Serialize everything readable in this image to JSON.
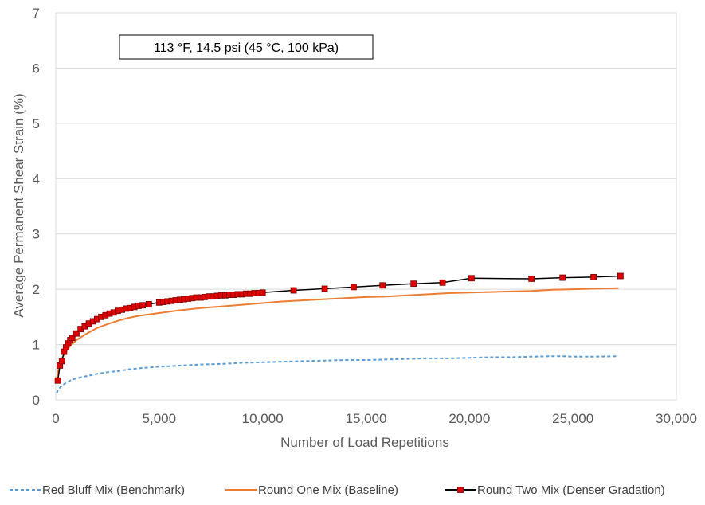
{
  "chart_data": {
    "type": "line",
    "xlabel": "Number  of Load Repetitions",
    "ylabel": "Average Permanent Shear Strain (%)",
    "xlim": [
      0,
      30000
    ],
    "ylim": [
      0,
      7
    ],
    "xticks": [
      0,
      5000,
      10000,
      15000,
      20000,
      25000,
      30000
    ],
    "xtick_labels": [
      "0",
      "5,000",
      "10,000",
      "15,000",
      "20,000",
      "25,000",
      "30,000"
    ],
    "yticks": [
      0,
      1,
      2,
      3,
      4,
      5,
      6,
      7
    ],
    "ytick_labels": [
      "0",
      "1",
      "2",
      "3",
      "4",
      "5",
      "6",
      "7"
    ],
    "grid": "horizontal",
    "annotation": "113 °F, 14.5 psi (45 °C, 100 kPa)",
    "legend_position": "bottom",
    "series": [
      {
        "name": "Red Bluff Mix (Benchmark)",
        "color": "#5B9BD5",
        "style": "dashed",
        "marker": "none",
        "x": [
          50,
          100,
          200,
          300,
          500,
          700,
          1000,
          1500,
          2000,
          2500,
          3000,
          3500,
          4000,
          5000,
          6000,
          7000,
          8000,
          9000,
          10000,
          11000,
          12000,
          13000,
          14000,
          15000,
          16000,
          17000,
          18000,
          19000,
          20000,
          21000,
          22000,
          23000,
          24000,
          24500,
          25000,
          26000,
          27200
        ],
        "y": [
          0.12,
          0.17,
          0.22,
          0.26,
          0.31,
          0.35,
          0.39,
          0.43,
          0.47,
          0.5,
          0.52,
          0.55,
          0.57,
          0.6,
          0.62,
          0.64,
          0.65,
          0.67,
          0.68,
          0.69,
          0.7,
          0.71,
          0.72,
          0.72,
          0.73,
          0.74,
          0.75,
          0.75,
          0.76,
          0.77,
          0.77,
          0.78,
          0.79,
          0.79,
          0.78,
          0.78,
          0.79
        ]
      },
      {
        "name": "Round One Mix (Baseline)",
        "color": "#ED7D31",
        "style": "solid",
        "marker": "none",
        "x": [
          50,
          100,
          200,
          300,
          500,
          700,
          1000,
          1500,
          2000,
          2500,
          3000,
          3500,
          4000,
          5000,
          6000,
          7000,
          8000,
          9000,
          10000,
          11000,
          12000,
          13000,
          14000,
          15000,
          16000,
          17000,
          18000,
          19000,
          20000,
          21000,
          22000,
          23000,
          24000,
          25000,
          26000,
          27200
        ],
        "y": [
          0.35,
          0.5,
          0.65,
          0.75,
          0.88,
          0.98,
          1.08,
          1.2,
          1.3,
          1.37,
          1.43,
          1.48,
          1.52,
          1.57,
          1.62,
          1.66,
          1.69,
          1.72,
          1.75,
          1.78,
          1.8,
          1.82,
          1.84,
          1.86,
          1.87,
          1.89,
          1.91,
          1.93,
          1.94,
          1.95,
          1.96,
          1.97,
          1.99,
          2.0,
          2.01,
          2.02
        ]
      },
      {
        "name": "Round Two Mix (Denser Gradation)",
        "color": "#000000",
        "marker_color": "#E00000",
        "style": "solid",
        "marker": "square",
        "x": [
          100,
          200,
          300,
          400,
          500,
          600,
          700,
          800,
          1000,
          1200,
          1400,
          1600,
          1800,
          2000,
          2200,
          2400,
          2600,
          2800,
          3000,
          3200,
          3400,
          3600,
          3800,
          4000,
          4200,
          4500,
          5000,
          5200,
          5400,
          5600,
          5800,
          6000,
          6200,
          6400,
          6600,
          6800,
          7000,
          7200,
          7400,
          7600,
          7800,
          8000,
          8200,
          8400,
          8600,
          8800,
          9000,
          9200,
          9400,
          9600,
          9800,
          10000,
          11500,
          13000,
          14400,
          15800,
          17300,
          18700,
          20100,
          23000,
          24500,
          26000,
          27300
        ],
        "y": [
          0.35,
          0.62,
          0.7,
          0.87,
          0.95,
          1.02,
          1.08,
          1.12,
          1.2,
          1.28,
          1.33,
          1.38,
          1.42,
          1.46,
          1.5,
          1.53,
          1.56,
          1.58,
          1.61,
          1.63,
          1.65,
          1.66,
          1.68,
          1.7,
          1.71,
          1.73,
          1.76,
          1.77,
          1.78,
          1.79,
          1.8,
          1.81,
          1.82,
          1.83,
          1.84,
          1.85,
          1.85,
          1.86,
          1.87,
          1.87,
          1.88,
          1.89,
          1.89,
          1.9,
          1.9,
          1.91,
          1.91,
          1.92,
          1.92,
          1.93,
          1.93,
          1.94,
          1.98,
          2.01,
          2.04,
          2.07,
          2.1,
          2.12,
          2.2,
          2.19,
          2.21,
          2.22,
          2.24
        ]
      }
    ]
  }
}
